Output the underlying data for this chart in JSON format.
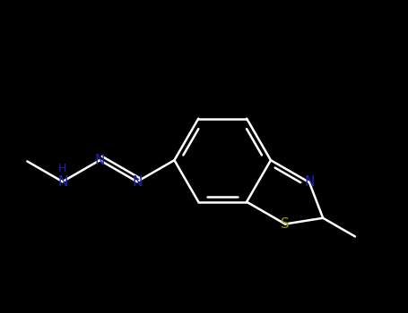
{
  "background_color": "#000000",
  "bond_color": "#ffffff",
  "N_color": "#2222bb",
  "S_color": "#999900",
  "H_color": "#888888",
  "line_width": 1.8,
  "font_size_atom": 11,
  "fig_width": 4.55,
  "fig_height": 3.5,
  "dpi": 100,
  "xlim": [
    0.0,
    5.5
  ],
  "ylim": [
    -1.5,
    2.0
  ]
}
